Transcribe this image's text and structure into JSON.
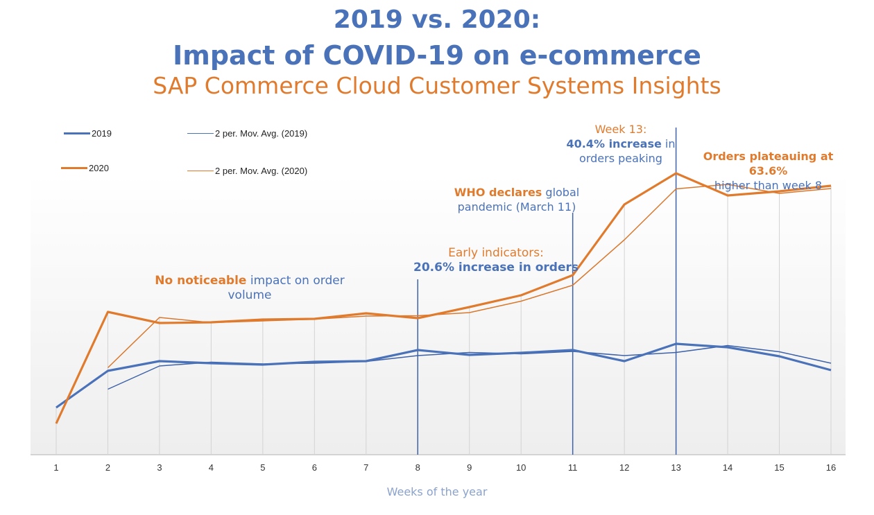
{
  "header": {
    "title_line1": "2019 vs. 2020:",
    "title_line2": "Impact of COVID-19 on e-commerce",
    "subtitle": "SAP Commerce Cloud Customer Systems Insights"
  },
  "colors": {
    "blue": "#4a72b8",
    "orange": "#e07b2e",
    "grid": "#d0d0d0"
  },
  "legend": [
    {
      "label": "2019",
      "color": "#4a72b8",
      "weight": "thick"
    },
    {
      "label": "2 per. Mov. Avg. (2019)",
      "color": "#4a72b8",
      "weight": "thin"
    },
    {
      "label": "2020",
      "color": "#e07b2e",
      "weight": "thick"
    },
    {
      "label": "2 per. Mov. Avg. (2020)",
      "color": "#e07b2e",
      "weight": "thin"
    }
  ],
  "annotations": {
    "no_impact": {
      "bold": "No noticeable",
      "rest": " impact on order volume"
    },
    "early": {
      "line1": "Early indicators:",
      "line2": "20.6% increase in orders"
    },
    "who": {
      "bold": "WHO declares",
      "rest": " global",
      "line2": "pandemic (March 11)"
    },
    "week13": {
      "line1": "Week 13:",
      "bold": "40.4% increase",
      "rest": " in",
      "line3": "orders peaking"
    },
    "plateau": {
      "line1": "Orders plateauing at 63.6%",
      "line2": "higher than week 8"
    }
  },
  "chart_data": {
    "type": "line",
    "title": "2019 vs. 2020: Impact of COVID-19 on e-commerce",
    "subtitle": "SAP Commerce Cloud Customer Systems Insights",
    "xlabel": "Weeks of the year",
    "ylabel": "",
    "x": [
      "1",
      "2",
      "3",
      "4",
      "5",
      "6",
      "7",
      "8",
      "9",
      "10",
      "11",
      "12",
      "13",
      "14",
      "15",
      "16"
    ],
    "ylim": [
      0,
      410
    ],
    "grid": "vertical",
    "legend_position": "top-left",
    "y_unit": "relative order volume (no axis scale shown)",
    "series": [
      {
        "name": "2019",
        "values": [
          68,
          121,
          135,
          132,
          130,
          134,
          135,
          151,
          144,
          147,
          151,
          135,
          160,
          155,
          142,
          122
        ]
      },
      {
        "name": "2020",
        "values": [
          45,
          206,
          190,
          191,
          195,
          196,
          204,
          197,
          213,
          230,
          259,
          361,
          406,
          374,
          380,
          388
        ]
      },
      {
        "name": "2 per. Mov. Avg. (2019)",
        "values": [
          null,
          94.5,
          128,
          133.5,
          131,
          132,
          134.5,
          143,
          147.5,
          145.5,
          149,
          143,
          147.5,
          157.5,
          148.5,
          132
        ]
      },
      {
        "name": "2 per. Mov. Avg. (2020)",
        "values": [
          null,
          125.5,
          198,
          190.5,
          193,
          195.5,
          200,
          200.5,
          205,
          221.5,
          244.5,
          310,
          383.5,
          390,
          377,
          384
        ]
      }
    ],
    "markers": [
      {
        "x": "8",
        "label": "Early indicators: 20.6% increase in orders"
      },
      {
        "x": "11",
        "label": "WHO declares global pandemic (March 11)"
      },
      {
        "x": "13",
        "label": "Week 13: 40.4% increase in orders peaking"
      }
    ]
  }
}
